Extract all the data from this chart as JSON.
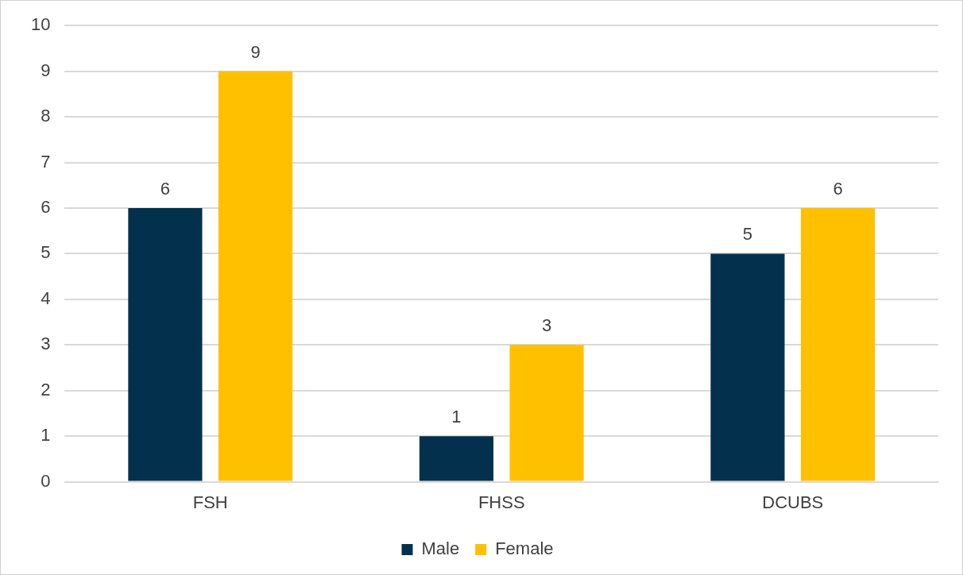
{
  "chart_data": {
    "type": "bar",
    "categories": [
      "FSH",
      "FHSS",
      "DCUBS"
    ],
    "series": [
      {
        "name": "Male",
        "color": "#03314d",
        "values": [
          6,
          1,
          5
        ]
      },
      {
        "name": "Female",
        "color": "#ffc000",
        "values": [
          9,
          3,
          6
        ]
      }
    ],
    "ylim": [
      0,
      10
    ],
    "yticks": [
      0,
      1,
      2,
      3,
      4,
      5,
      6,
      7,
      8,
      9,
      10
    ],
    "grid": "y",
    "legend": "bottom",
    "data_labels": true
  }
}
